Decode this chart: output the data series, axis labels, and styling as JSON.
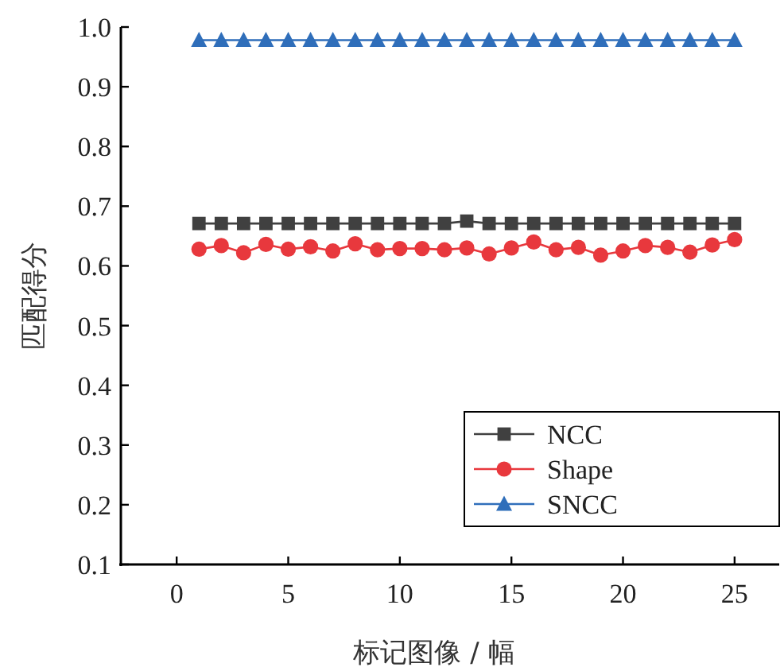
{
  "chart_data": {
    "type": "line",
    "xlabel": "标记图像 / 幅",
    "ylabel": "匹配得分",
    "x": [
      1,
      2,
      3,
      4,
      5,
      6,
      7,
      8,
      9,
      10,
      11,
      12,
      13,
      14,
      15,
      16,
      17,
      18,
      19,
      20,
      21,
      22,
      23,
      24,
      25
    ],
    "xlim": [
      -2.5,
      27
    ],
    "xticks": [
      0,
      5,
      10,
      15,
      20,
      25
    ],
    "ylim": [
      0.1,
      1.0
    ],
    "yticks": [
      {
        "value": 0.1,
        "label": "0.1"
      },
      {
        "value": 0.2,
        "label": "0.2"
      },
      {
        "value": 0.3,
        "label": "0.3"
      },
      {
        "value": 0.4,
        "label": "0.4"
      },
      {
        "value": 0.5,
        "label": "0.5"
      },
      {
        "value": 0.6,
        "label": "0.6"
      },
      {
        "value": 0.7,
        "label": "0.7"
      },
      {
        "value": 0.8,
        "label": "0.8"
      },
      {
        "value": 0.9,
        "label": "0.9"
      },
      {
        "value": 1.0,
        "label": "1.0"
      }
    ],
    "grid": false,
    "legend": "bottom right",
    "line_style": "solid",
    "series": [
      {
        "name": "NCC",
        "color": "#404040",
        "marker": "square",
        "values": [
          0.671,
          0.671,
          0.671,
          0.671,
          0.671,
          0.671,
          0.671,
          0.671,
          0.671,
          0.671,
          0.671,
          0.671,
          0.675,
          0.671,
          0.671,
          0.671,
          0.671,
          0.671,
          0.671,
          0.671,
          0.671,
          0.671,
          0.671,
          0.671,
          0.671
        ]
      },
      {
        "name": "Shape",
        "color": "#e8383d",
        "marker": "circle",
        "values": [
          0.628,
          0.634,
          0.622,
          0.636,
          0.628,
          0.632,
          0.625,
          0.637,
          0.627,
          0.629,
          0.629,
          0.627,
          0.63,
          0.62,
          0.63,
          0.64,
          0.627,
          0.631,
          0.618,
          0.625,
          0.634,
          0.631,
          0.623,
          0.635,
          0.644
        ]
      },
      {
        "name": "SNCC",
        "color": "#2f6eba",
        "marker": "triangle",
        "values": [
          0.978,
          0.978,
          0.978,
          0.978,
          0.978,
          0.978,
          0.978,
          0.978,
          0.978,
          0.978,
          0.978,
          0.978,
          0.978,
          0.978,
          0.978,
          0.978,
          0.978,
          0.978,
          0.978,
          0.978,
          0.978,
          0.978,
          0.978,
          0.978,
          0.978
        ]
      }
    ]
  }
}
